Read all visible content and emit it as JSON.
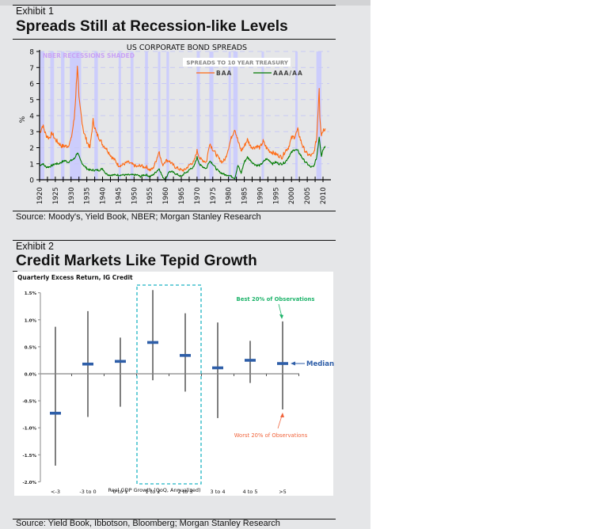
{
  "exhibit1": {
    "label": "Exhibit 1",
    "title": "Spreads Still at Recession-like Levels",
    "source": "Source: Moody's, Yield Book, NBER; Morgan Stanley Research"
  },
  "exhibit2": {
    "label": "Exhibit 2",
    "title": "Credit Markets Like Tepid Growth",
    "source": "Source: Yield Book, Ibbotson, Bloomberg; Morgan Stanley Research"
  },
  "chart_data": [
    {
      "type": "line",
      "title": "US CORPORATE BOND SPREADS",
      "subtitle": "SPREADS TO 10 YEAR TREASURY",
      "annotation": "NBER RECESSIONS SHADED",
      "xlabel": "",
      "ylabel": "%",
      "xlim": [
        1920,
        2011
      ],
      "ylim": [
        0,
        8
      ],
      "yticks": [
        0,
        1,
        2,
        3,
        4,
        5,
        6,
        7,
        8
      ],
      "xticks": [
        "1920",
        "1925",
        "1930",
        "1935",
        "1940",
        "1945",
        "1950",
        "1955",
        "1960",
        "1965",
        "1970",
        "1975",
        "1980",
        "1985",
        "1990",
        "1995",
        "2000",
        "2005",
        "2010"
      ],
      "grid": true,
      "legend": "top-right",
      "colors": {
        "BAA": "#ff6a13",
        "AAA/AA": "#007a00",
        "recession": "#cccdfc"
      },
      "recessions": [
        [
          1920.0,
          1921.5
        ],
        [
          1923.4,
          1924.6
        ],
        [
          1926.8,
          1927.9
        ],
        [
          1929.6,
          1933.2
        ],
        [
          1937.4,
          1938.5
        ],
        [
          1945.1,
          1945.8
        ],
        [
          1948.9,
          1949.8
        ],
        [
          1953.5,
          1954.4
        ],
        [
          1957.6,
          1958.3
        ],
        [
          1960.3,
          1961.1
        ],
        [
          1969.9,
          1970.9
        ],
        [
          1973.9,
          1975.2
        ],
        [
          1980.0,
          1980.5
        ],
        [
          1981.5,
          1982.9
        ],
        [
          1990.5,
          1991.2
        ],
        [
          2001.2,
          2001.9
        ],
        [
          2007.9,
          2009.5
        ]
      ],
      "series": [
        {
          "name": "BAA",
          "x": [
            1920,
            1921,
            1922,
            1923,
            1924,
            1925,
            1926,
            1927,
            1928,
            1929,
            1930,
            1931,
            1931.5,
            1932,
            1932.5,
            1933,
            1934,
            1935,
            1936,
            1937,
            1938,
            1939,
            1940,
            1941,
            1942,
            1943,
            1944,
            1945,
            1946,
            1947,
            1948,
            1949,
            1950,
            1951,
            1952,
            1953,
            1954,
            1955,
            1956,
            1957,
            1958,
            1958.5,
            1959,
            1960,
            1961,
            1962,
            1963,
            1964,
            1965,
            1966,
            1967,
            1968,
            1969,
            1970,
            1971,
            1972,
            1973,
            1974,
            1975,
            1976,
            1977,
            1978,
            1979,
            1980,
            1981,
            1982,
            1983,
            1984,
            1985,
            1986,
            1987,
            1988,
            1989,
            1990,
            1991,
            1992,
            1993,
            1994,
            1995,
            1996,
            1997,
            1998,
            1999,
            2000,
            2001,
            2002,
            2003,
            2004,
            2005,
            2006,
            2007,
            2008,
            2008.8,
            2009,
            2009.5,
            2010,
            2010.7
          ],
          "values": [
            2.9,
            3.4,
            2.8,
            2.6,
            2.9,
            2.5,
            2.3,
            2.1,
            2.1,
            2.1,
            2.5,
            3.8,
            5.3,
            7.2,
            5.0,
            4.3,
            3.0,
            2.4,
            2.0,
            3.7,
            2.9,
            2.6,
            2.2,
            2.0,
            1.7,
            1.4,
            1.2,
            0.9,
            0.9,
            1.0,
            1.1,
            1.0,
            0.9,
            0.8,
            0.9,
            0.8,
            0.8,
            0.6,
            0.7,
            1.2,
            1.8,
            1.3,
            0.9,
            1.2,
            1.2,
            1.0,
            0.8,
            0.7,
            0.6,
            0.6,
            0.8,
            1.0,
            1.1,
            1.8,
            1.3,
            1.2,
            1.1,
            2.3,
            1.9,
            1.6,
            1.3,
            1.1,
            1.3,
            2.0,
            2.7,
            3.2,
            2.4,
            1.8,
            2.1,
            2.5,
            2.1,
            2.0,
            2.1,
            2.0,
            2.4,
            2.0,
            1.8,
            1.7,
            1.6,
            1.5,
            1.4,
            1.8,
            2.0,
            2.6,
            2.7,
            3.1,
            2.4,
            1.9,
            1.6,
            1.5,
            1.6,
            2.6,
            5.8,
            4.0,
            2.8,
            3.1,
            3.2
          ]
        },
        {
          "name": "AAA/AA",
          "x": [
            1920,
            1921,
            1922,
            1923,
            1924,
            1925,
            1926,
            1927,
            1928,
            1929,
            1930,
            1931,
            1932,
            1933,
            1934,
            1935,
            1936,
            1937,
            1938,
            1939,
            1940,
            1941,
            1942,
            1943,
            1944,
            1945,
            1946,
            1947,
            1948,
            1949,
            1950,
            1951,
            1952,
            1953,
            1954,
            1955,
            1956,
            1957,
            1958,
            1959,
            1960,
            1961,
            1962,
            1963,
            1964,
            1965,
            1966,
            1967,
            1968,
            1969,
            1970,
            1971,
            1972,
            1973,
            1974,
            1975,
            1976,
            1977,
            1978,
            1979,
            1980,
            1981,
            1982,
            1983,
            1984,
            1985,
            1986,
            1987,
            1988,
            1989,
            1990,
            1991,
            1992,
            1993,
            1994,
            1995,
            1996,
            1997,
            1998,
            1999,
            2000,
            2001,
            2002,
            2003,
            2004,
            2005,
            2006,
            2007,
            2008,
            2008.8,
            2009.5,
            2010,
            2010.7
          ],
          "values": [
            0.9,
            1.0,
            0.8,
            0.8,
            0.9,
            1.0,
            1.0,
            1.1,
            1.2,
            1.1,
            1.2,
            1.3,
            1.7,
            1.2,
            0.9,
            0.7,
            0.6,
            0.6,
            0.6,
            0.6,
            0.7,
            0.4,
            0.3,
            0.3,
            0.3,
            0.3,
            0.3,
            0.3,
            0.3,
            0.3,
            0.3,
            0.3,
            0.2,
            0.3,
            0.3,
            0.2,
            0.3,
            0.5,
            0.7,
            0.2,
            0.0,
            0.5,
            0.5,
            0.4,
            0.3,
            0.2,
            0.4,
            0.5,
            0.7,
            0.8,
            1.4,
            0.9,
            0.8,
            0.7,
            1.2,
            1.0,
            0.7,
            0.5,
            0.4,
            0.3,
            0.3,
            0.2,
            0.1,
            0.9,
            0.4,
            1.1,
            1.4,
            1.2,
            1.0,
            0.9,
            0.9,
            1.1,
            1.3,
            1.2,
            1.0,
            1.1,
            1.0,
            1.0,
            1.1,
            1.4,
            1.7,
            1.9,
            1.8,
            1.5,
            1.2,
            1.0,
            0.8,
            0.8,
            1.4,
            2.7,
            1.5,
            1.9,
            2.1
          ]
        }
      ]
    },
    {
      "type": "range",
      "title": "Quarterly Excess Return, IG Credit",
      "xlabel": "Real GDP Growth (QoQ, Annualized)",
      "ylabel": "",
      "ylim": [
        -2.0,
        1.5
      ],
      "yticks": [
        "1.5%",
        "1.0%",
        "0.5%",
        "0.0%",
        "-0.5%",
        "-1.0%",
        "-1.5%",
        "-2.0%"
      ],
      "ytick_values": [
        1.5,
        1.0,
        0.5,
        0.0,
        -0.5,
        -1.0,
        -1.5,
        -2.0
      ],
      "categories": [
        "<-3",
        "-3 to 0",
        "0 to 1",
        "1 to 2",
        "2 to 3",
        "3 to 4",
        "4 to 5",
        ">5"
      ],
      "series": [
        {
          "name": "Best 20% of Observations",
          "values": [
            0.87,
            1.16,
            0.67,
            1.55,
            1.12,
            0.95,
            0.61,
            0.97
          ]
        },
        {
          "name": "Median",
          "values": [
            -0.73,
            0.18,
            0.23,
            0.58,
            0.34,
            0.11,
            0.25,
            0.19
          ]
        },
        {
          "name": "Worst 20% of Observations",
          "values": [
            -1.7,
            -0.8,
            -0.61,
            -0.12,
            -0.33,
            -0.82,
            -0.17,
            -0.66
          ]
        }
      ],
      "highlight_categories": [
        "1 to 2",
        "2 to 3"
      ],
      "annotations": {
        "best": "Best 20% of Observations",
        "worst": "Worst 20% of Observations",
        "median": "Median"
      },
      "colors": {
        "range": "#7f7f7f",
        "median": "#2e5ea8",
        "best": "#1db36a",
        "worst": "#f0643c",
        "highlight": "#1fb5c4"
      }
    }
  ]
}
